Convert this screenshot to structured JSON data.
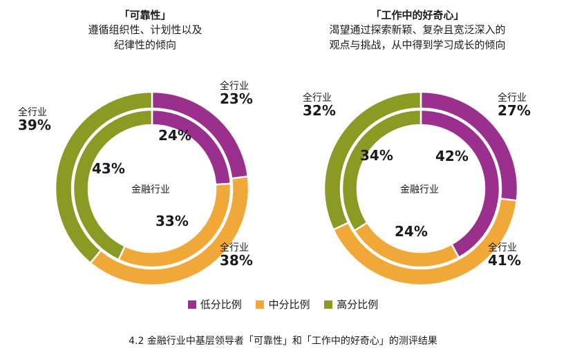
{
  "colors": {
    "low": "#9b2f8e",
    "mid": "#f0a838",
    "high": "#8a9a22"
  },
  "legend": [
    {
      "label": "低分比例",
      "color": "#9b2f8e"
    },
    {
      "label": "中分比例",
      "color": "#f0a838"
    },
    {
      "label": "高分比例",
      "color": "#8a9a22"
    }
  ],
  "caption": "4.2 金融行业中基层领导者「可靠性」和「工作中的好奇心」的测评结果",
  "chart_data": [
    {
      "type": "pie",
      "title": "「可靠性」",
      "subtitle_lines": [
        "遵循组织性、计划性以及",
        "纪律性的倾向"
      ],
      "center_label": "金融行业",
      "outer_label": "全行业",
      "outer": {
        "name": "全行业",
        "values": [
          23,
          38,
          39
        ],
        "labels": [
          "23%",
          "38%",
          "39%"
        ]
      },
      "inner": {
        "name": "金融行业",
        "values": [
          24,
          33,
          43
        ],
        "labels": [
          "24%",
          "33%",
          "43%"
        ]
      },
      "categories": [
        "低分比例",
        "中分比例",
        "高分比例"
      ]
    },
    {
      "type": "pie",
      "title": "「工作中的好奇心」",
      "subtitle_lines": [
        "渴望通过探索新颖、复杂且宽泛深入的",
        "观点与挑战，从中得到学习成长的倾向"
      ],
      "center_label": "金融行业",
      "outer_label": "全行业",
      "outer": {
        "name": "全行业",
        "values": [
          27,
          41,
          32
        ],
        "labels": [
          "27%",
          "41%",
          "32%"
        ]
      },
      "inner": {
        "name": "金融行业",
        "values": [
          42,
          24,
          34
        ],
        "labels": [
          "42%",
          "24%",
          "34%"
        ]
      },
      "categories": [
        "低分比例",
        "中分比例",
        "高分比例"
      ]
    }
  ]
}
